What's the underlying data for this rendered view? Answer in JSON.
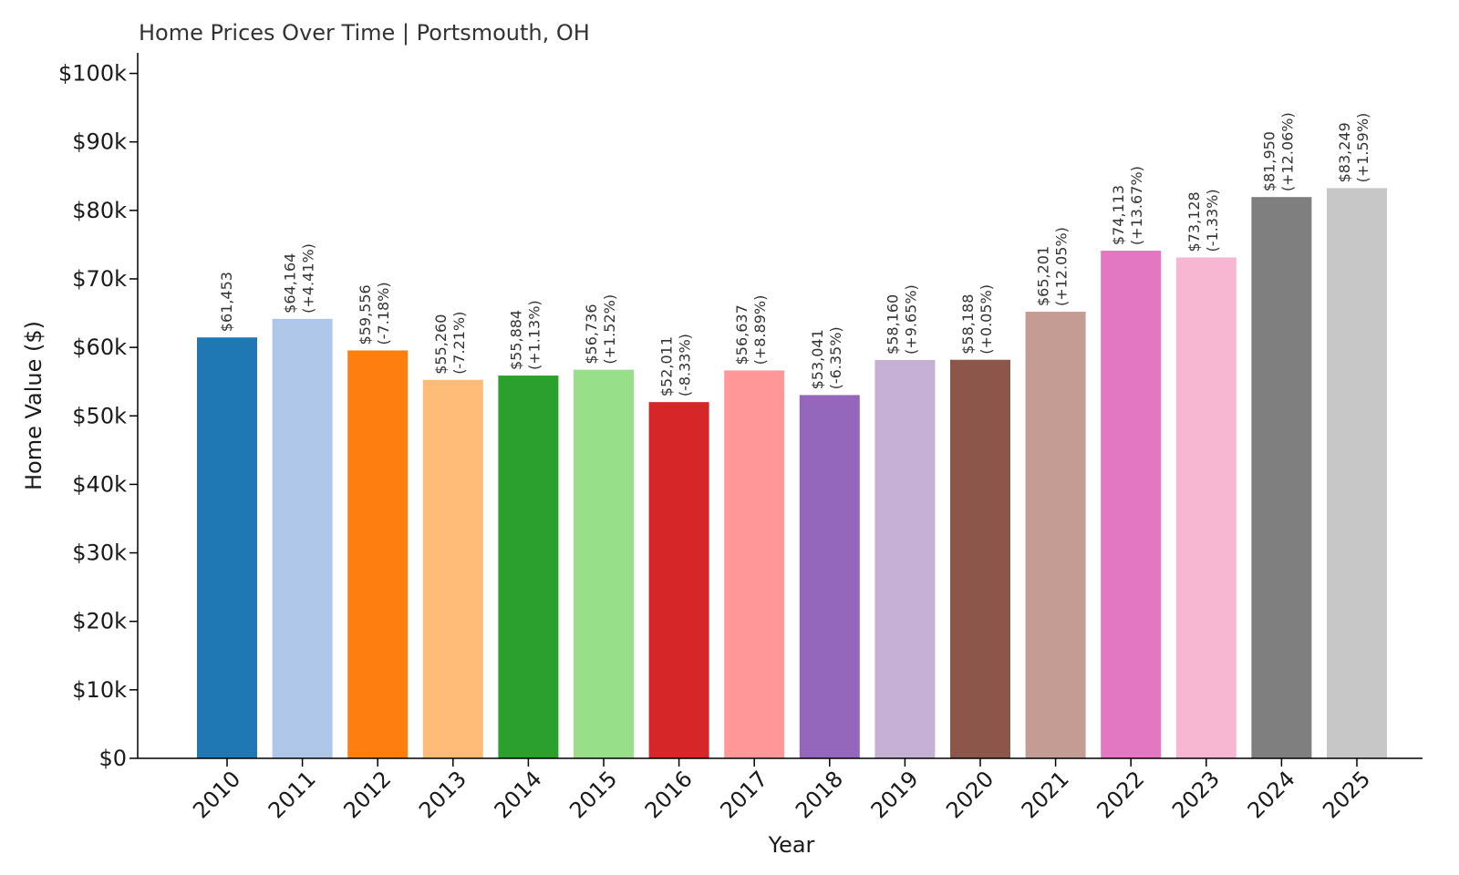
{
  "chart_data": {
    "type": "bar",
    "title": "Home Prices Over Time | Portsmouth, OH",
    "xlabel": "Year",
    "ylabel": "Home Value ($)",
    "ylim": [
      0,
      103000
    ],
    "yticks": [
      {
        "value": 0,
        "label": "$0"
      },
      {
        "value": 10000,
        "label": "$10k"
      },
      {
        "value": 20000,
        "label": "$20k"
      },
      {
        "value": 30000,
        "label": "$30k"
      },
      {
        "value": 40000,
        "label": "$40k"
      },
      {
        "value": 50000,
        "label": "$50k"
      },
      {
        "value": 60000,
        "label": "$60k"
      },
      {
        "value": 70000,
        "label": "$70k"
      },
      {
        "value": 80000,
        "label": "$80k"
      },
      {
        "value": 90000,
        "label": "$90k"
      },
      {
        "value": 100000,
        "label": "$100k"
      }
    ],
    "categories": [
      "2010",
      "2011",
      "2012",
      "2013",
      "2014",
      "2015",
      "2016",
      "2017",
      "2018",
      "2019",
      "2020",
      "2021",
      "2022",
      "2023",
      "2024",
      "2025"
    ],
    "values": [
      61453,
      64164,
      59556,
      55260,
      55884,
      56736,
      52011,
      56637,
      53041,
      58160,
      58188,
      65201,
      74113,
      73128,
      81950,
      83249
    ],
    "value_labels": [
      "$61,453",
      "$64,164",
      "$59,556",
      "$55,260",
      "$55,884",
      "$56,736",
      "$52,011",
      "$56,637",
      "$53,041",
      "$58,160",
      "$58,188",
      "$65,201",
      "$74,113",
      "$73,128",
      "$81,950",
      "$83,249"
    ],
    "change_labels": [
      "",
      "(+4.41%)",
      "(-7.18%)",
      "(-7.21%)",
      "(+1.13%)",
      "(+1.52%)",
      "(-8.33%)",
      "(+8.89%)",
      "(-6.35%)",
      "(+9.65%)",
      "(+0.05%)",
      "(+12.05%)",
      "(+13.67%)",
      "(-1.33%)",
      "(+12.06%)",
      "(+1.59%)"
    ],
    "colors": [
      "#1f77b4",
      "#aec7e8",
      "#ff7f0e",
      "#ffbb78",
      "#2ca02c",
      "#98df8a",
      "#d62728",
      "#ff9896",
      "#9467bd",
      "#c5b0d5",
      "#8c564b",
      "#c49c94",
      "#e377c2",
      "#f7b6d2",
      "#7f7f7f",
      "#c7c7c7"
    ],
    "grid": false,
    "legend": "none"
  }
}
